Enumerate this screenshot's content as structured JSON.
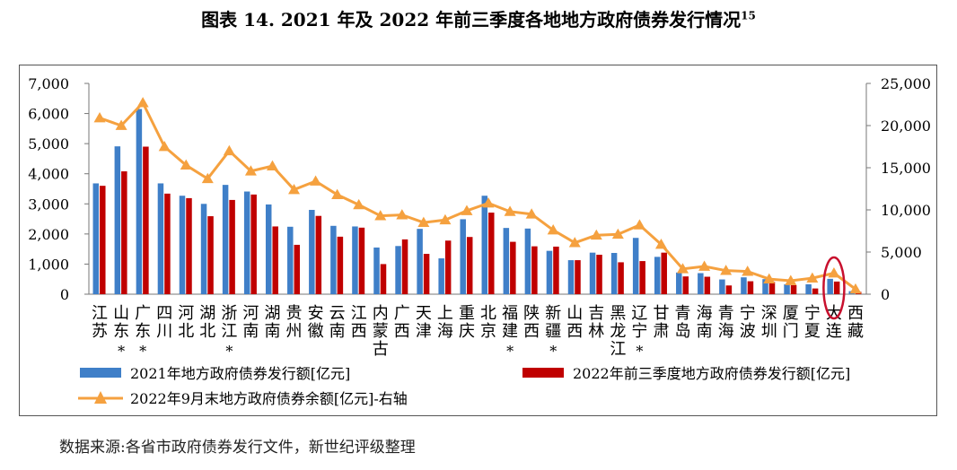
{
  "title": "图表 14. 2021 年及 2022 年前三季度各地地方政府债券发行情况",
  "title_sup": "15",
  "source": "数据来源:各省市政府债券发行文件，新世纪评级整理",
  "colors": {
    "bar2021": "#3F7FC8",
    "bar2022": "#C00000",
    "line": "#F5A13F",
    "highlight": "#C8102E"
  },
  "chart_data": {
    "type": "bar",
    "categories": [
      {
        "name": "江苏",
        "star": false
      },
      {
        "name": "山东",
        "star": true
      },
      {
        "name": "广东",
        "star": true
      },
      {
        "name": "四川",
        "star": false
      },
      {
        "name": "河北",
        "star": false
      },
      {
        "name": "湖北",
        "star": false
      },
      {
        "name": "浙江",
        "star": true
      },
      {
        "name": "河南",
        "star": false
      },
      {
        "name": "湖南",
        "star": false
      },
      {
        "name": "贵州",
        "star": false
      },
      {
        "name": "安徽",
        "star": false
      },
      {
        "name": "云南",
        "star": false
      },
      {
        "name": "江西",
        "star": false
      },
      {
        "name": "内蒙古",
        "star": false
      },
      {
        "name": "广西",
        "star": false
      },
      {
        "name": "天津",
        "star": false
      },
      {
        "name": "上海",
        "star": false
      },
      {
        "name": "重庆",
        "star": false
      },
      {
        "name": "北京",
        "star": false
      },
      {
        "name": "福建",
        "star": true
      },
      {
        "name": "陕西",
        "star": false
      },
      {
        "name": "新疆",
        "star": true
      },
      {
        "name": "山西",
        "star": false
      },
      {
        "name": "吉林",
        "star": false
      },
      {
        "name": "黑龙江",
        "star": false
      },
      {
        "name": "辽宁",
        "star": true
      },
      {
        "name": "甘肃",
        "star": false
      },
      {
        "name": "青岛",
        "star": false
      },
      {
        "name": "海南",
        "star": false
      },
      {
        "name": "青海",
        "star": false
      },
      {
        "name": "宁波",
        "star": false
      },
      {
        "name": "深圳",
        "star": false
      },
      {
        "name": "厦门",
        "star": false
      },
      {
        "name": "宁夏",
        "star": false
      },
      {
        "name": "大连",
        "star": false
      },
      {
        "name": "西藏",
        "star": false
      }
    ],
    "highlight_index": 34,
    "series": [
      {
        "name": "2021年地方政府债券发行额[亿元]",
        "type": "bar",
        "axis": "left",
        "values": [
          3680,
          4910,
          6150,
          3680,
          3270,
          3000,
          3630,
          3410,
          2980,
          2240,
          2800,
          2270,
          2250,
          1550,
          1600,
          2170,
          1190,
          2490,
          3270,
          2200,
          2180,
          1440,
          1130,
          1380,
          1370,
          1870,
          1240,
          720,
          700,
          490,
          560,
          500,
          330,
          330,
          510,
          100
        ]
      },
      {
        "name": "2022年前三季度地方政府债券发行额[亿元]",
        "type": "bar",
        "axis": "left",
        "values": [
          3600,
          4080,
          4900,
          3340,
          3190,
          2590,
          3130,
          3310,
          2250,
          1640,
          2600,
          1910,
          2210,
          1000,
          1820,
          1340,
          1780,
          1900,
          2710,
          1740,
          1590,
          1580,
          1130,
          1310,
          1060,
          1100,
          1380,
          590,
          580,
          290,
          430,
          410,
          300,
          190,
          420,
          80
        ]
      },
      {
        "name": "2022年9月末地方政府债券余额[亿元]-右轴",
        "type": "line",
        "axis": "right",
        "values": [
          20900,
          20000,
          22700,
          17500,
          15300,
          13700,
          17000,
          14600,
          15200,
          12400,
          13400,
          11800,
          10600,
          9300,
          9400,
          8500,
          8800,
          9900,
          10800,
          9800,
          9500,
          7600,
          6100,
          7000,
          7100,
          8200,
          5900,
          3000,
          3300,
          2800,
          2700,
          1800,
          1600,
          1900,
          2500,
          600
        ]
      }
    ],
    "left_axis": {
      "min": 0,
      "max": 7000,
      "step": 1000,
      "ticks": [
        "0",
        "1,000",
        "2,000",
        "3,000",
        "4,000",
        "5,000",
        "6,000",
        "7,000"
      ]
    },
    "right_axis": {
      "min": 0,
      "max": 25000,
      "step": 5000,
      "ticks": [
        "0",
        "5,000",
        "10,000",
        "15,000",
        "20,000",
        "25,000"
      ]
    },
    "legend_position": "bottom",
    "grid": false
  }
}
